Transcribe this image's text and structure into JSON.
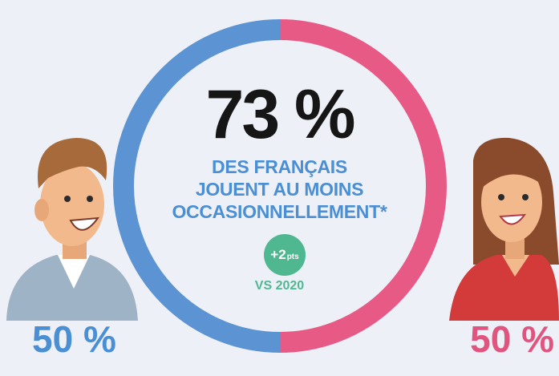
{
  "headline": "73 %",
  "subtitle_lines": [
    "DES FRANÇAIS",
    "JOUENT AU MOINS",
    "OCCASIONNELLEMENT*"
  ],
  "change_badge": {
    "value": "+2",
    "unit": "pts"
  },
  "comparison_label": "VS 2020",
  "colors": {
    "men": "#5b93d3",
    "women": "#e85a86",
    "change": "#4fb891",
    "background": "#eef0f7"
  },
  "icons": {
    "men": "man-illustration-icon",
    "women": "woman-illustration-icon"
  },
  "chart_data": {
    "type": "pie",
    "variant": "donut",
    "categories": [
      "Hommes",
      "Femmes"
    ],
    "values": [
      50,
      50
    ],
    "labels": [
      "50 %",
      "50 %"
    ],
    "center_value": "73 %"
  }
}
